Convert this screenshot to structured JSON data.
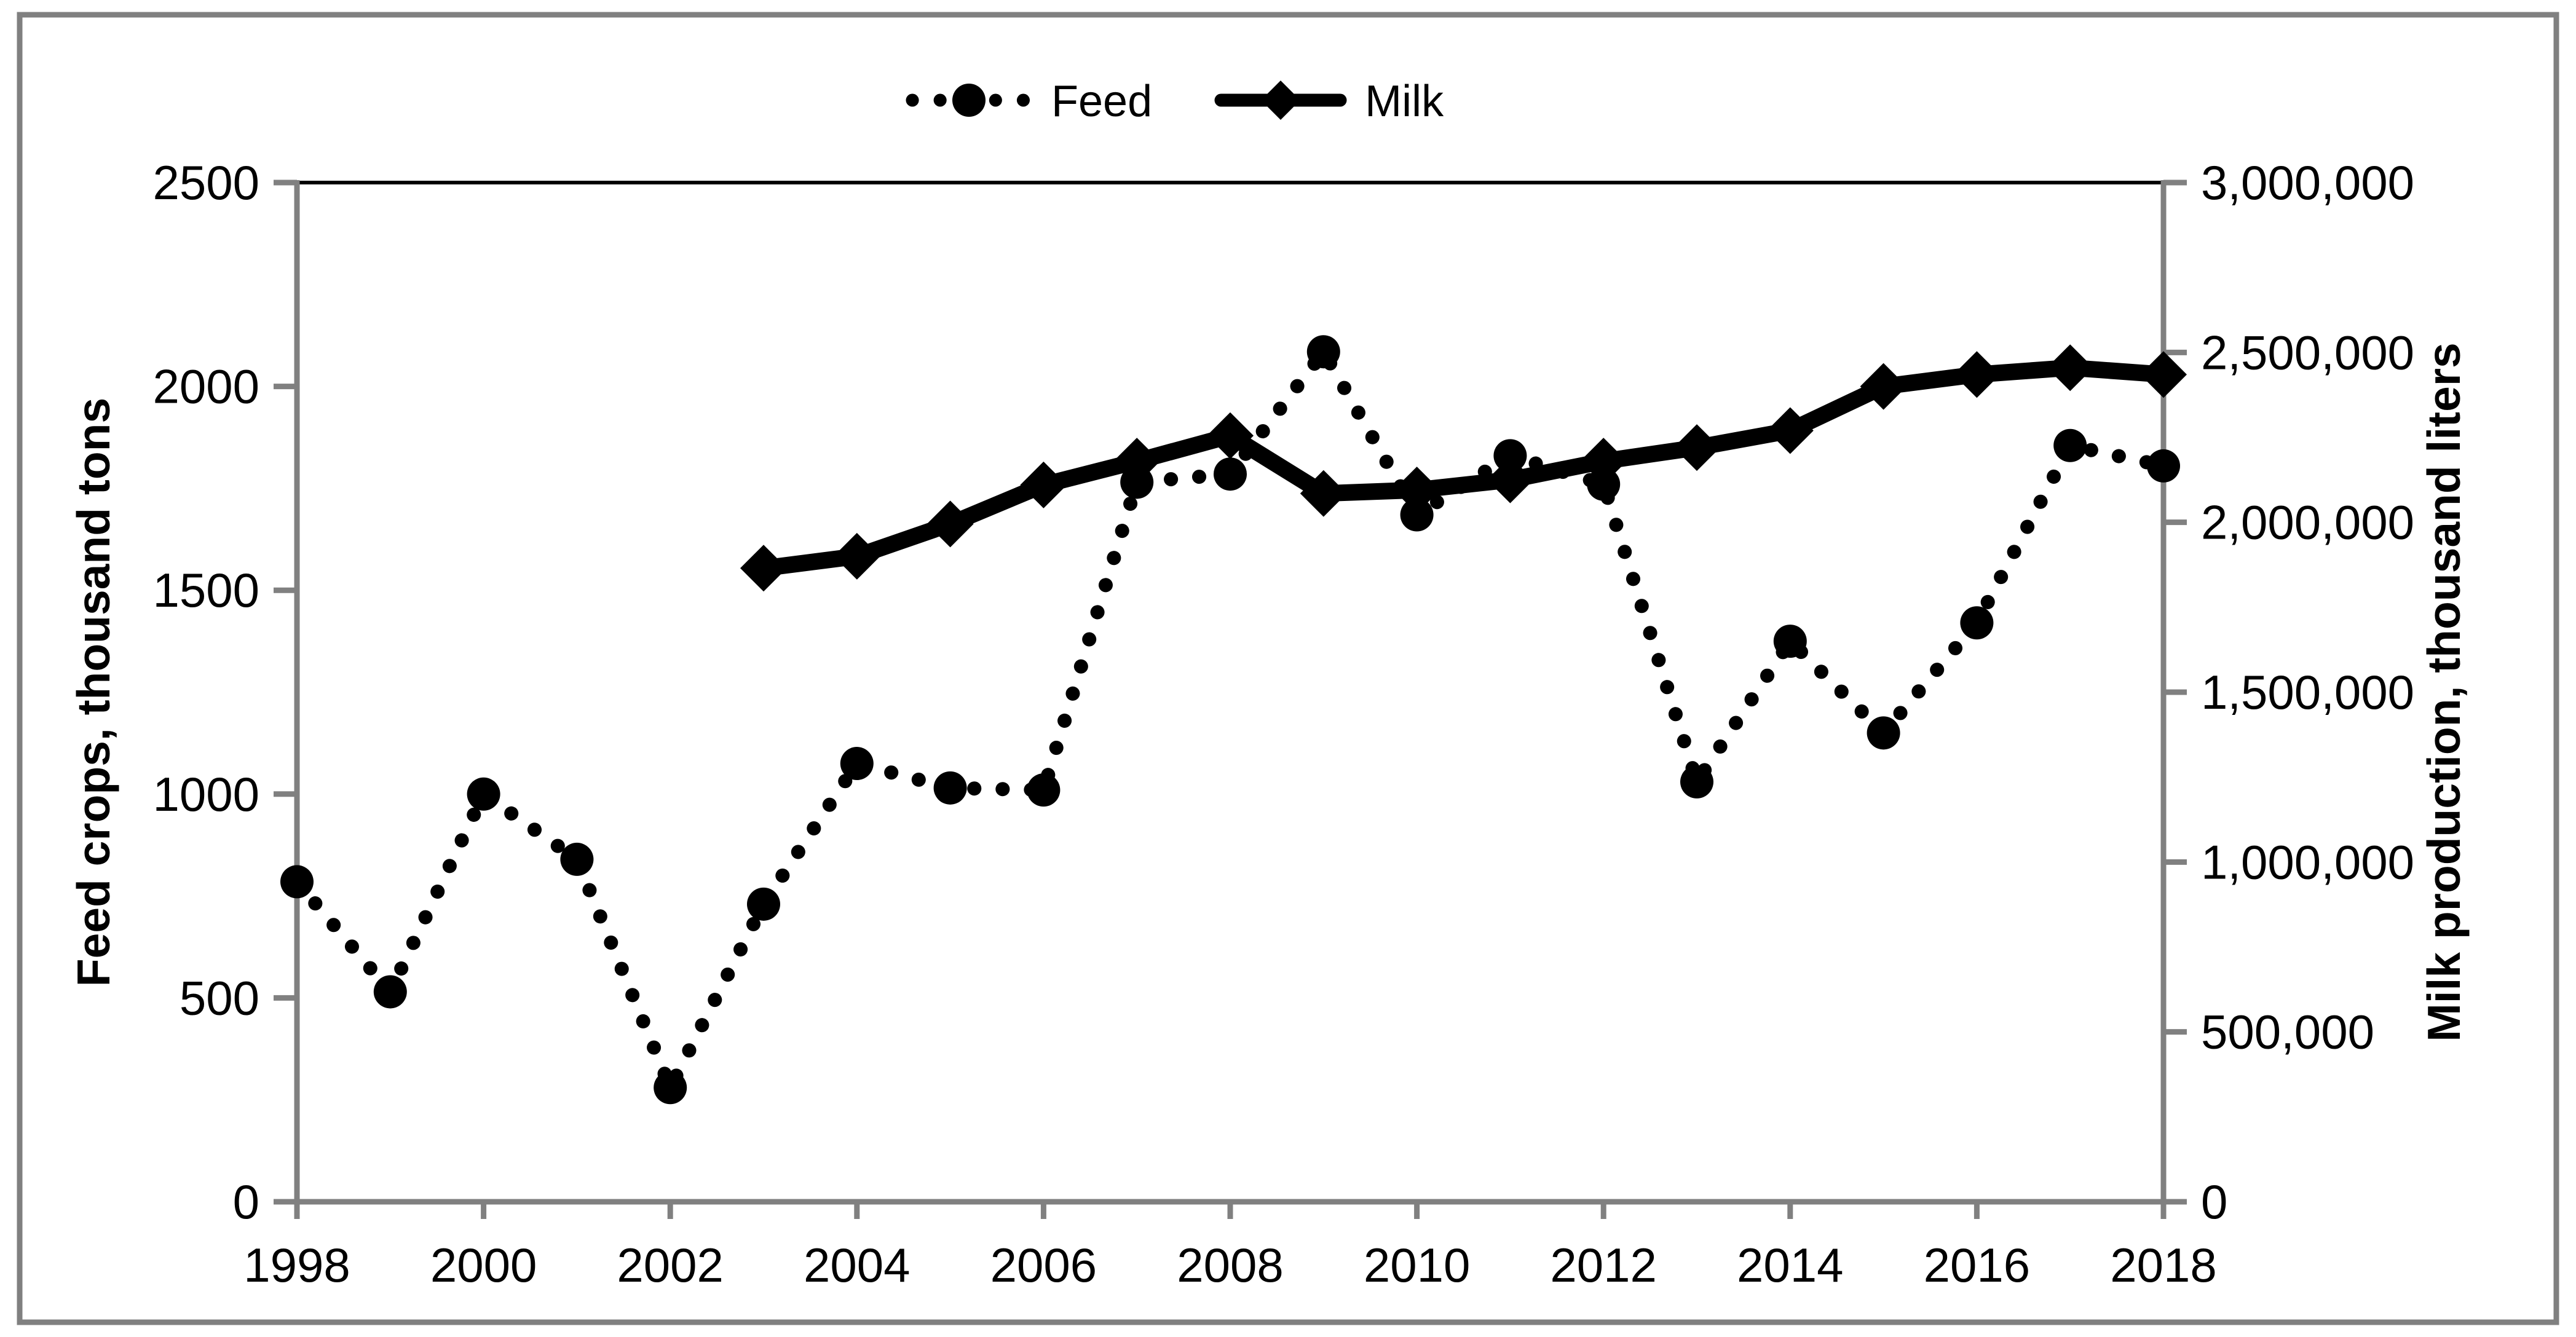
{
  "legend": {
    "items": [
      {
        "label": "Feed"
      },
      {
        "label": "Milk"
      }
    ]
  },
  "chart_data": {
    "type": "line",
    "title": "",
    "x": [
      1998,
      1999,
      2000,
      2001,
      2002,
      2003,
      2004,
      2005,
      2006,
      2007,
      2008,
      2009,
      2010,
      2011,
      2012,
      2013,
      2014,
      2015,
      2016,
      2017,
      2018
    ],
    "series": [
      {
        "name": "Feed",
        "axis": "left",
        "style": "dotted-line-circle-markers",
        "years": [
          1998,
          1999,
          2000,
          2001,
          2002,
          2003,
          2004,
          2005,
          2006,
          2007,
          2008,
          2009,
          2010,
          2011,
          2012,
          2013,
          2014,
          2015,
          2016,
          2017,
          2018
        ],
        "values": [
          785,
          515,
          1000,
          840,
          280,
          730,
          1075,
          1015,
          1010,
          1765,
          1785,
          2085,
          1685,
          1830,
          1760,
          1030,
          1375,
          1150,
          1420,
          1855,
          1805
        ]
      },
      {
        "name": "Milk",
        "axis": "right",
        "style": "solid-line-diamond-markers",
        "years": [
          2003,
          2004,
          2005,
          2006,
          2007,
          2008,
          2009,
          2010,
          2011,
          2012,
          2013,
          2014,
          2015,
          2016,
          2017,
          2018
        ],
        "values": [
          1865000,
          1900000,
          1995000,
          2110000,
          2180000,
          2255000,
          2085000,
          2095000,
          2125000,
          2180000,
          2220000,
          2270000,
          2400000,
          2435000,
          2455000,
          2435000
        ]
      }
    ],
    "left_axis": {
      "label": "Feed crops, thousand tons",
      "min": 0,
      "max": 2500,
      "step": 500,
      "tick_labels": [
        "0",
        "500",
        "1000",
        "1500",
        "2000",
        "2500"
      ]
    },
    "right_axis": {
      "label": "Milk production, thousand liters",
      "min": 0,
      "max": 3000000,
      "step": 500000,
      "tick_labels": [
        "0",
        "500,000",
        "1,000,000",
        "1,500,000",
        "2,000,000",
        "2,500,000",
        "3,000,000"
      ]
    },
    "x_axis": {
      "tick_labels": [
        "1998",
        "2000",
        "2002",
        "2004",
        "2006",
        "2008",
        "2010",
        "2012",
        "2014",
        "2016",
        "2018"
      ],
      "tick_years": [
        1998,
        2000,
        2002,
        2004,
        2006,
        2008,
        2010,
        2012,
        2014,
        2016,
        2018
      ]
    },
    "grid": "off",
    "legend_position": "top-center",
    "colors": {
      "series": "#000000",
      "axis": "#808080",
      "border": "#808080",
      "background": "#ffffff"
    }
  }
}
